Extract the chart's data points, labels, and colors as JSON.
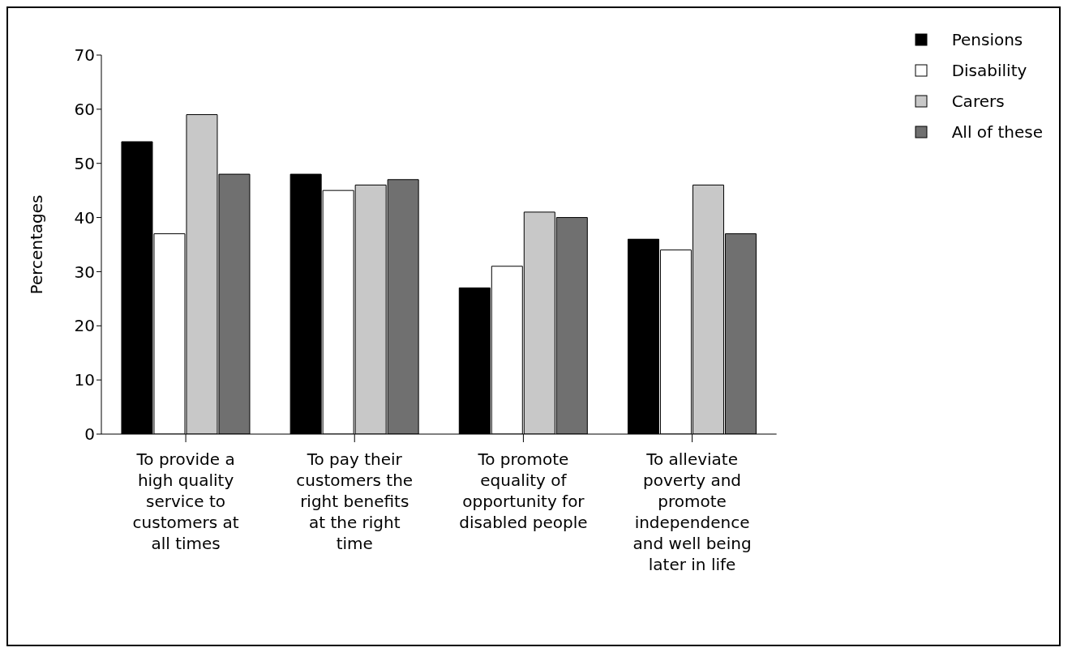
{
  "chart_data": {
    "type": "bar",
    "ylabel": "Percentages",
    "categories": [
      "To provide a high quality service to customers at all times",
      "To pay their customers the right benefits at the right time",
      "To promote equality of opportunity for disabled people",
      "To alleviate poverty and promote independence and well being later in life"
    ],
    "series": [
      {
        "name": "Pensions",
        "color": "#000000",
        "values": [
          54,
          48,
          27,
          36
        ]
      },
      {
        "name": "Disability",
        "color": "#ffffff",
        "values": [
          37,
          45,
          31,
          34
        ]
      },
      {
        "name": "Carers",
        "color": "#c8c8c8",
        "values": [
          59,
          46,
          41,
          46
        ]
      },
      {
        "name": "All of these",
        "color": "#707070",
        "values": [
          48,
          47,
          40,
          37
        ]
      }
    ],
    "ylim": [
      0,
      70
    ],
    "yticks": [
      0,
      10,
      20,
      30,
      40,
      50,
      60,
      70
    ],
    "grid": false,
    "legend": "top right"
  }
}
